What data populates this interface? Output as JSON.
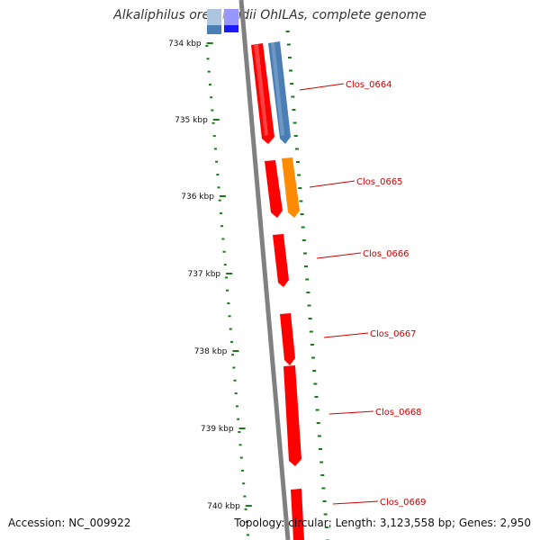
{
  "title": "Alkaliphilus oremlandii OhILAs, complete genome",
  "footer": {
    "accession_label": "Accession:",
    "accession": "NC_009922",
    "topology_label": "Topology:",
    "topology": "circular",
    "length_label": "Length:",
    "length": "3,123,558 bp",
    "genes_label": "Genes:",
    "genes": "2,950"
  },
  "map": {
    "ticks": [
      {
        "label": "734 kbp",
        "kbp": 734
      },
      {
        "label": "735 kbp",
        "kbp": 735
      },
      {
        "label": "736 kbp",
        "kbp": 736
      },
      {
        "label": "737 kbp",
        "kbp": 737
      },
      {
        "label": "738 kbp",
        "kbp": 738
      },
      {
        "label": "739 kbp",
        "kbp": 739
      },
      {
        "label": "740 kbp",
        "kbp": 740
      }
    ],
    "genes": [
      {
        "label": "Clos_0664"
      },
      {
        "label": "Clos_0665"
      },
      {
        "label": "Clos_0666"
      },
      {
        "label": "Clos_0667"
      },
      {
        "label": "Clos_0668"
      },
      {
        "label": "Clos_0669"
      }
    ],
    "colors": {
      "cds": "#ff0000",
      "blue": "#4a7fb5",
      "orange": "#ff8c00",
      "dark_blue": "#1a1aff",
      "backbone": "#808080",
      "dots": "#1a7a1a",
      "label": "#cc0000"
    }
  }
}
